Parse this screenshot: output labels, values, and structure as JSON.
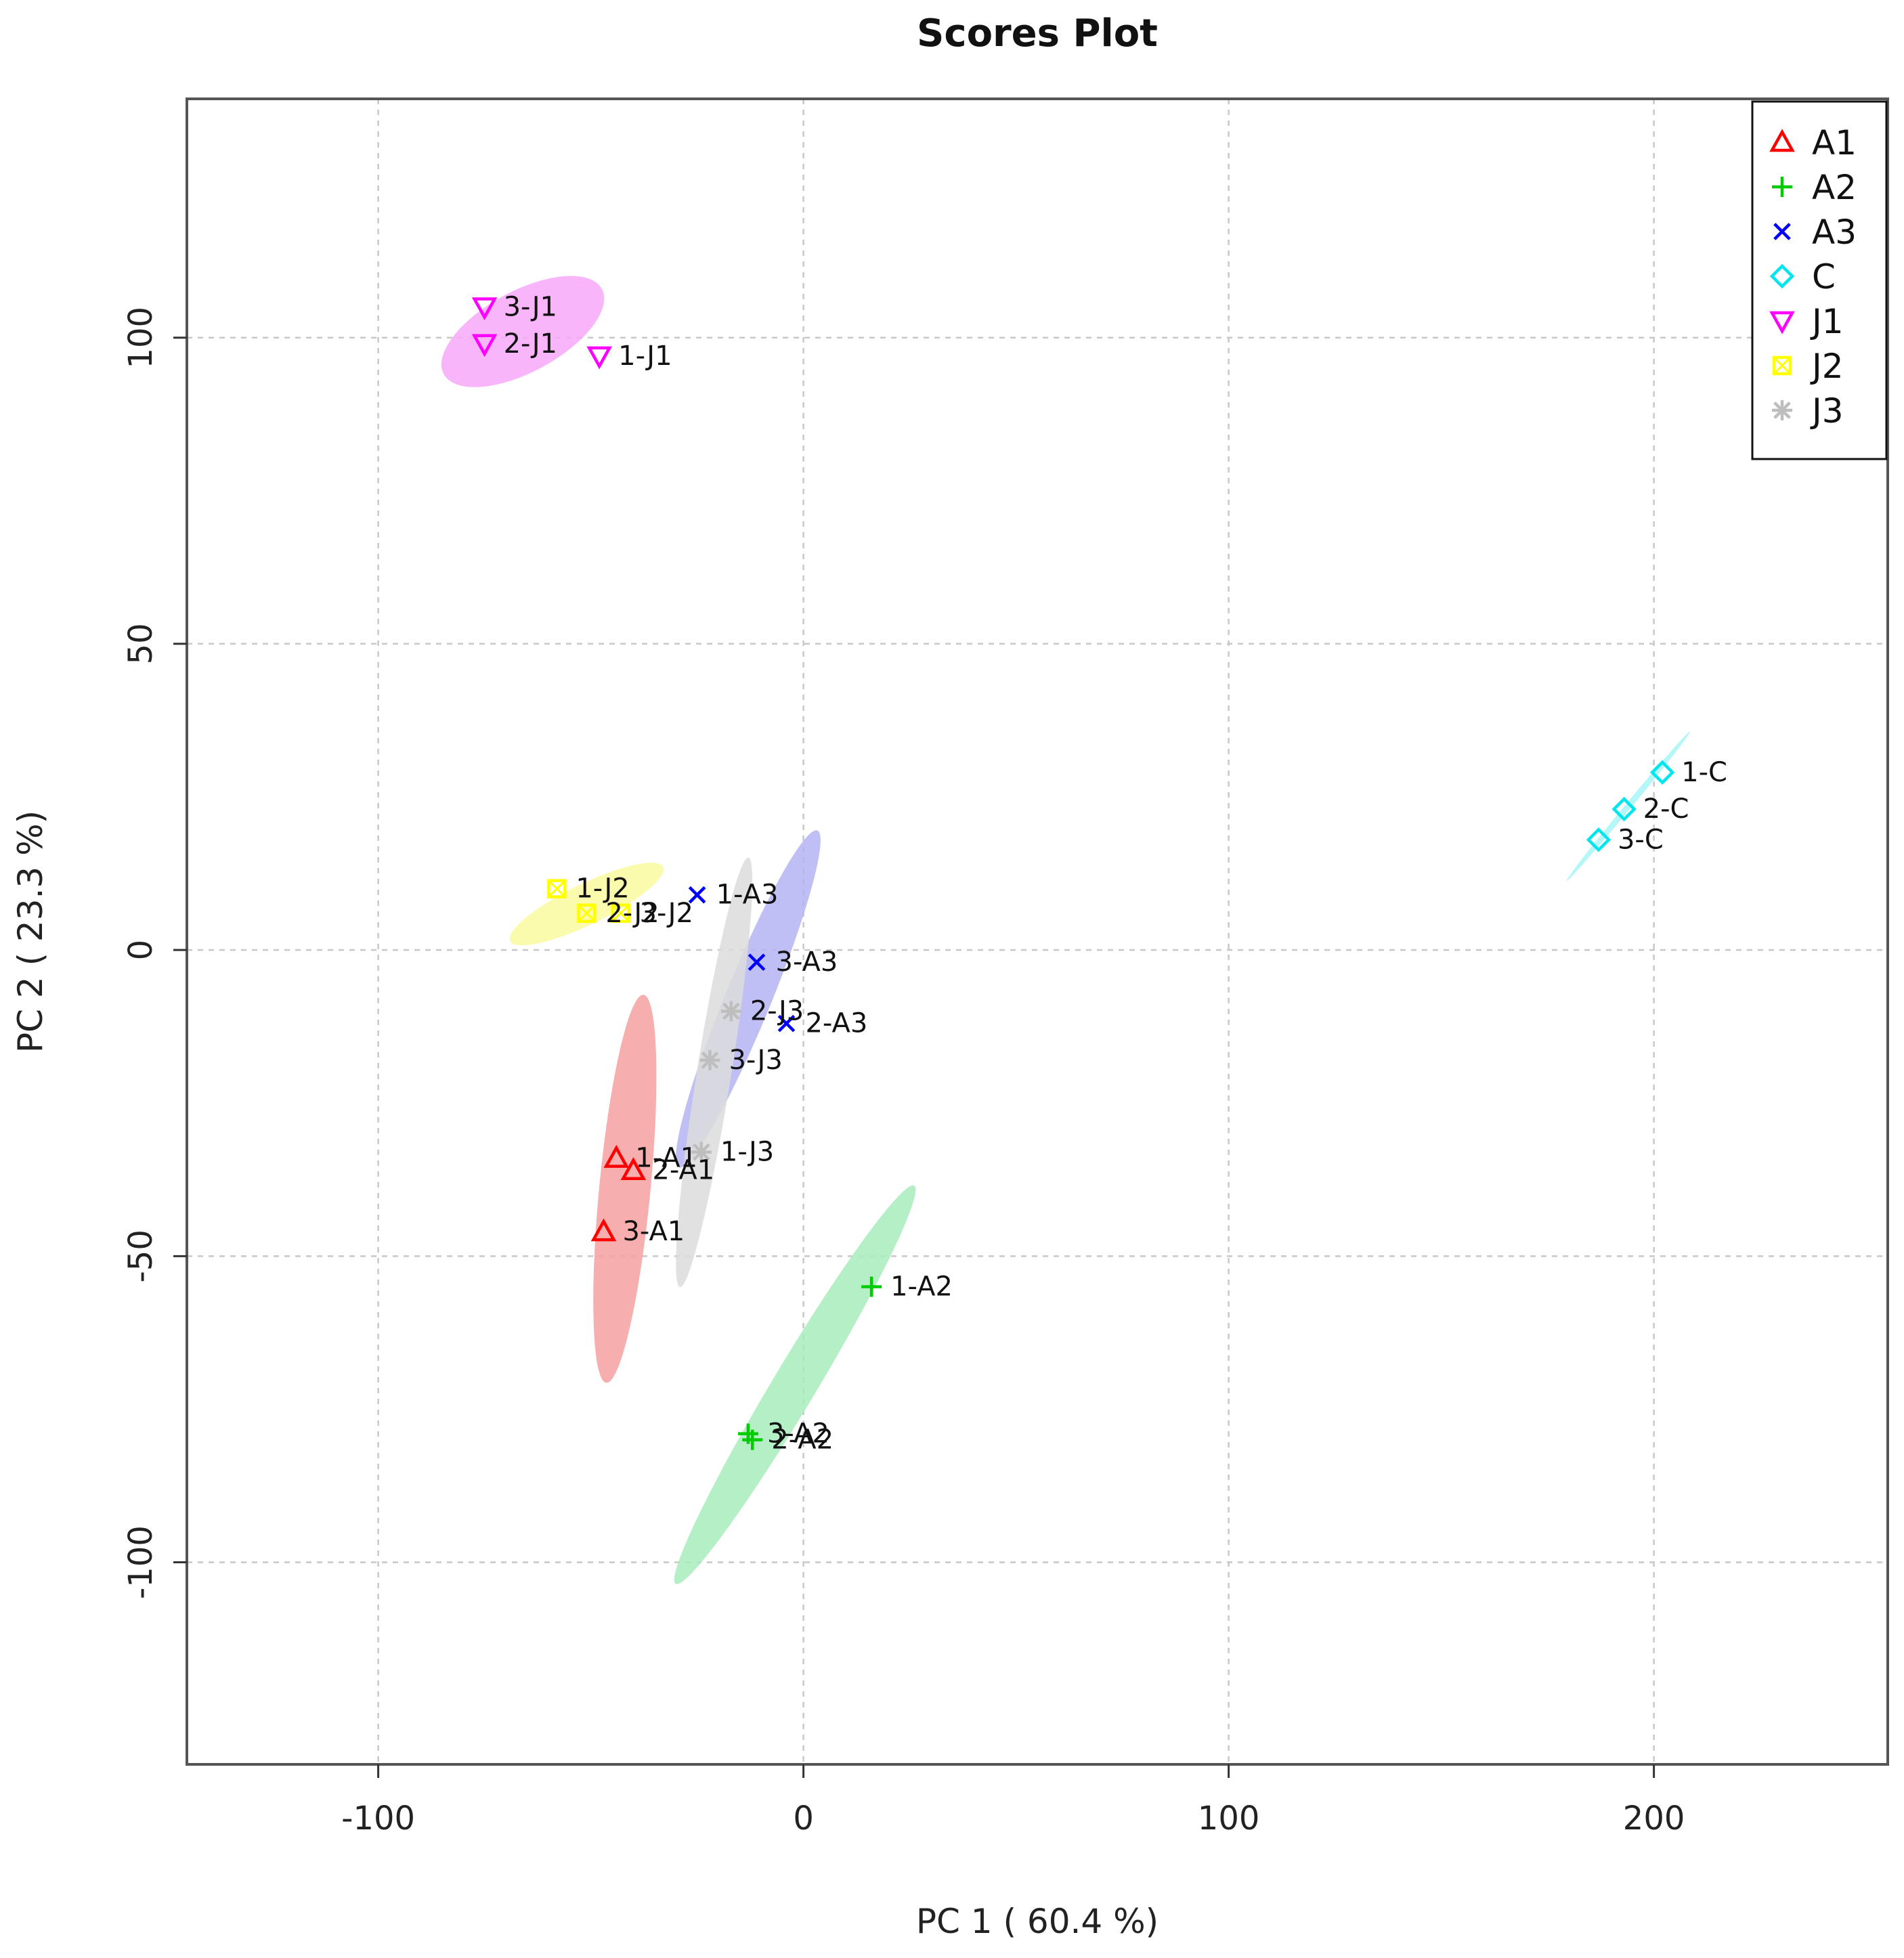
{
  "chart_data": {
    "type": "scatter",
    "title": "Scores Plot",
    "xlabel": "PC 1 ( 60.4 %)",
    "ylabel": "PC 2 ( 23.3 %)",
    "xlim": [
      -145,
      255
    ],
    "ylim": [
      -133,
      139
    ],
    "xticks": [
      -100,
      0,
      100,
      200
    ],
    "yticks": [
      -100,
      -50,
      0,
      50,
      100
    ],
    "grid": true,
    "legend_position": "top-right",
    "series": [
      {
        "name": "A1",
        "color": "#ff0000",
        "marker": "triangle",
        "points": [
          {
            "label": "1-A1",
            "x": -44,
            "y": -34
          },
          {
            "label": "2-A1",
            "x": -40,
            "y": -36
          },
          {
            "label": "3-A1",
            "x": -47,
            "y": -46
          }
        ],
        "ellipse": {
          "cx": -42,
          "cy": -39,
          "rx": 32,
          "ry": 6,
          "angle": 82,
          "fill": "#f4a0a0"
        }
      },
      {
        "name": "A2",
        "color": "#00cc00",
        "marker": "plus",
        "points": [
          {
            "label": "1-A2",
            "x": 16,
            "y": -55
          },
          {
            "label": "2-A2",
            "x": -12,
            "y": -80
          },
          {
            "label": "3-A2",
            "x": -13,
            "y": -79
          }
        ],
        "ellipse": {
          "cx": -2,
          "cy": -71,
          "rx": 43,
          "ry": 4.5,
          "angle": 49,
          "fill": "#a8ecbc"
        }
      },
      {
        "name": "A3",
        "color": "#0000ff",
        "marker": "x",
        "points": [
          {
            "label": "1-A3",
            "x": -25,
            "y": 9
          },
          {
            "label": "2-A3",
            "x": -4,
            "y": -12
          },
          {
            "label": "3-A3",
            "x": -11,
            "y": -2
          }
        ],
        "ellipse": {
          "cx": -13,
          "cy": -8,
          "rx": 32,
          "ry": 5,
          "angle": 59,
          "fill": "#b4b4f4"
        }
      },
      {
        "name": "C",
        "color": "#00e5ee",
        "marker": "diamond",
        "points": [
          {
            "label": "1-C",
            "x": 202,
            "y": 29
          },
          {
            "label": "2-C",
            "x": 193,
            "y": 23
          },
          {
            "label": "3-C",
            "x": 187,
            "y": 18
          }
        ],
        "ellipse": {
          "cx": 194,
          "cy": 23.5,
          "rx": 19,
          "ry": 0.6,
          "angle": 40,
          "fill": "#a8f4f8"
        }
      },
      {
        "name": "J1",
        "color": "#ff00ff",
        "marker": "triangle-down",
        "points": [
          {
            "label": "1-J1",
            "x": -48,
            "y": 97
          },
          {
            "label": "2-J1",
            "x": -75,
            "y": 99
          },
          {
            "label": "3-J1",
            "x": -75,
            "y": 105
          }
        ],
        "ellipse": {
          "cx": -66,
          "cy": 101,
          "rx": 20,
          "ry": 7,
          "angle": 18,
          "fill": "#f8a8f8"
        }
      },
      {
        "name": "J2",
        "color": "#ffff00",
        "marker": "square-x",
        "points": [
          {
            "label": "1-J2",
            "x": -58,
            "y": 10
          },
          {
            "label": "2-J2",
            "x": -51,
            "y": 6
          },
          {
            "label": "3-J2",
            "x": -43,
            "y": 6
          }
        ],
        "ellipse": {
          "cx": -51,
          "cy": 7.5,
          "rx": 19,
          "ry": 3.5,
          "angle": 18,
          "fill": "#fafaa0"
        }
      },
      {
        "name": "J3",
        "color": "#bebebe",
        "marker": "asterisk",
        "points": [
          {
            "label": "1-J3",
            "x": -24,
            "y": -33
          },
          {
            "label": "2-J3",
            "x": -17,
            "y": -10
          },
          {
            "label": "3-J3",
            "x": -22,
            "y": -18
          }
        ],
        "ellipse": {
          "cx": -21,
          "cy": -20,
          "rx": 36,
          "ry": 4,
          "angle": 77,
          "fill": "#dcdcdc"
        }
      }
    ]
  }
}
